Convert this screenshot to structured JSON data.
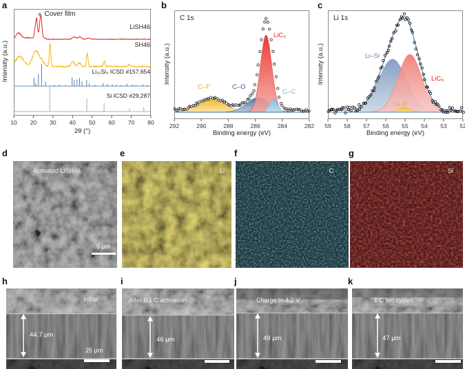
{
  "panel_letters": {
    "a": "a",
    "b": "b",
    "c": "c",
    "d": "d",
    "e": "e",
    "f": "f",
    "g": "g",
    "h": "h",
    "i": "i",
    "j": "j",
    "k": "k"
  },
  "panel_d": {
    "label": "Activated LiSH46",
    "scale_bar": "5 μm"
  },
  "panel_e": {
    "label": "Li"
  },
  "panel_f": {
    "label": "C"
  },
  "panel_g": {
    "label": "Si"
  },
  "panel_h": {
    "label": "Initial",
    "thickness": "44.7 μm",
    "scale_bar": "25 μm"
  },
  "panel_i": {
    "label": "After 0.1 C activation",
    "thickness": "46 μm"
  },
  "panel_j": {
    "label": "Charge to 4.2 V",
    "thickness": "49 μm"
  },
  "panel_k": {
    "label": "1 C ten cycles",
    "thickness": "47 μm"
  },
  "chart_data": [
    {
      "panel": "a",
      "type": "line",
      "title": "",
      "xlabel": "2θ (°)",
      "ylabel": "Intensity (a.u.)",
      "xlim": [
        10,
        80
      ],
      "xticks": [
        10,
        20,
        30,
        40,
        50,
        60,
        70,
        80
      ],
      "annotation": "Cover film",
      "annotation_marker": "diamond",
      "series": [
        {
          "name": "LiSH46",
          "color": "#e3231b",
          "style": "curve",
          "baseline": 0.716,
          "amp": 0.19,
          "noise": 0.016,
          "peaks": [
            {
              "x": 12.5,
              "h": 0.3,
              "w": 1.3
            },
            {
              "x": 17,
              "h": 0.08,
              "w": 2
            },
            {
              "x": 20.8,
              "h": 0.3,
              "w": 0.35
            },
            {
              "x": 21.6,
              "h": 0.85,
              "w": 0.4
            },
            {
              "x": 22.8,
              "h": 0.25,
              "w": 1.6
            },
            {
              "x": 23.8,
              "h": 1.0,
              "w": 0.5
            },
            {
              "x": 40.8,
              "h": 0.12,
              "w": 0.9
            },
            {
              "x": 43.6,
              "h": 0.12,
              "w": 0.9
            },
            {
              "x": 48,
              "h": 0.05,
              "w": 1.0
            }
          ]
        },
        {
          "name": "SH46",
          "color": "#f5b40e",
          "style": "curve",
          "baseline": 0.46,
          "amp": 0.23,
          "noise": 0.028,
          "peaks": [
            {
              "x": 13,
              "h": 0.4,
              "w": 2.2
            },
            {
              "x": 21,
              "h": 0.6,
              "w": 1.5
            },
            {
              "x": 24,
              "h": 0.25,
              "w": 1.5
            },
            {
              "x": 28.5,
              "h": 1.0,
              "w": 0.35
            },
            {
              "x": 40.2,
              "h": 0.2,
              "w": 0.8
            },
            {
              "x": 43.5,
              "h": 0.15,
              "w": 0.8
            },
            {
              "x": 47.5,
              "h": 0.55,
              "w": 0.4
            },
            {
              "x": 56.2,
              "h": 0.2,
              "w": 0.5
            },
            {
              "x": 69,
              "h": 0.08,
              "w": 0.6
            }
          ]
        },
        {
          "name": "Li₁₅Si₄ ICSD #157,654",
          "color": "#4d7fae",
          "style": "sticks",
          "baseline": 0.277,
          "amp": 0.21,
          "sticks": [
            [
              20.3,
              0.37
            ],
            [
              21.2,
              0.13
            ],
            [
              22.6,
              0.55
            ],
            [
              24.2,
              1.0
            ],
            [
              26.2,
              0.2
            ],
            [
              30.8,
              0.05
            ],
            [
              33.2,
              0.07
            ],
            [
              36.5,
              0.05
            ],
            [
              39.8,
              0.38
            ],
            [
              40.9,
              0.27
            ],
            [
              42.3,
              0.3
            ],
            [
              43.6,
              0.36
            ],
            [
              44.8,
              0.2
            ],
            [
              47.2,
              0.28
            ],
            [
              48.6,
              0.12
            ],
            [
              51.5,
              0.06
            ],
            [
              55.6,
              0.13
            ],
            [
              57.8,
              0.1
            ],
            [
              60.3,
              0.08
            ],
            [
              62.2,
              0.06
            ],
            [
              64.8,
              0.05
            ],
            [
              67.8,
              0.1
            ],
            [
              70.6,
              0.07
            ],
            [
              72.4,
              0.05
            ],
            [
              75.8,
              0.08
            ],
            [
              78.2,
              0.05
            ]
          ]
        },
        {
          "name": "Si ICSD #29,287",
          "color": "#a8a8a8",
          "style": "sticks",
          "baseline": 0.039,
          "amp": 0.24,
          "sticks": [
            [
              28.4,
              1.0
            ],
            [
              47.3,
              0.5
            ],
            [
              56.1,
              0.33
            ],
            [
              69.1,
              0.13
            ],
            [
              76.4,
              0.17
            ]
          ]
        }
      ]
    },
    {
      "panel": "b",
      "type": "area",
      "title": "C 1s",
      "xlabel": "Binding energy (eV)",
      "ylabel": "Intensity (a.u.)",
      "xlim": [
        292,
        282
      ],
      "xticks": [
        292,
        290,
        288,
        286,
        284,
        282
      ],
      "baseline_color": "#3f6fa3",
      "draw_order": [
        0,
        1,
        2,
        3
      ],
      "components": [
        {
          "name": "C–F",
          "center": 289.2,
          "height": 0.13,
          "width": 1.0,
          "color": "#f0b81f",
          "label_color": "#e8a817"
        },
        {
          "name": "C–O",
          "center": 285.8,
          "height": 0.15,
          "width": 0.85,
          "color": "#3f6fa3",
          "label_color": "#2f5f96"
        },
        {
          "name": "LiC₆",
          "center": 285.2,
          "height": 0.8,
          "width": 0.42,
          "color": "#e8332a",
          "label_color": "#e0251c"
        },
        {
          "name": "C–C",
          "center": 284.65,
          "height": 0.14,
          "width": 0.3,
          "color": "#74c0e8",
          "label_color": "#6cb6e4"
        }
      ],
      "scatter": {
        "marker": "open-circle",
        "stroke": "#3a3a3a",
        "count": 85,
        "noise": 0.012
      }
    },
    {
      "panel": "c",
      "type": "area",
      "title": "Li 1s",
      "xlabel": "Binding energy (eV)",
      "ylabel": "Intensity (a.u.)",
      "xlim": [
        59,
        52
      ],
      "xticks": [
        59,
        58,
        57,
        56,
        55,
        54,
        53,
        52
      ],
      "baseline_color": "#5b87b5",
      "fit_line": "#5b87b5",
      "draw_order": [
        0,
        1,
        2
      ],
      "components": [
        {
          "name": "Li–Si",
          "center": 55.65,
          "height": 0.55,
          "width": 0.72,
          "color": "#7d9cc0",
          "label_color": "#5b87b5"
        },
        {
          "name": "LiC₆",
          "center": 54.75,
          "height": 0.6,
          "width": 0.62,
          "color": "#ef7f78",
          "label_color": "#e0251c"
        },
        {
          "name": "Li–F",
          "center": 55.05,
          "height": 0.05,
          "width": 0.3,
          "color": "#f0b81f",
          "label_color": "#e8a817"
        }
      ],
      "scatter": {
        "marker": "open-circle",
        "stroke": "#1a1a1a",
        "count": 92,
        "noise": 0.03
      }
    }
  ]
}
